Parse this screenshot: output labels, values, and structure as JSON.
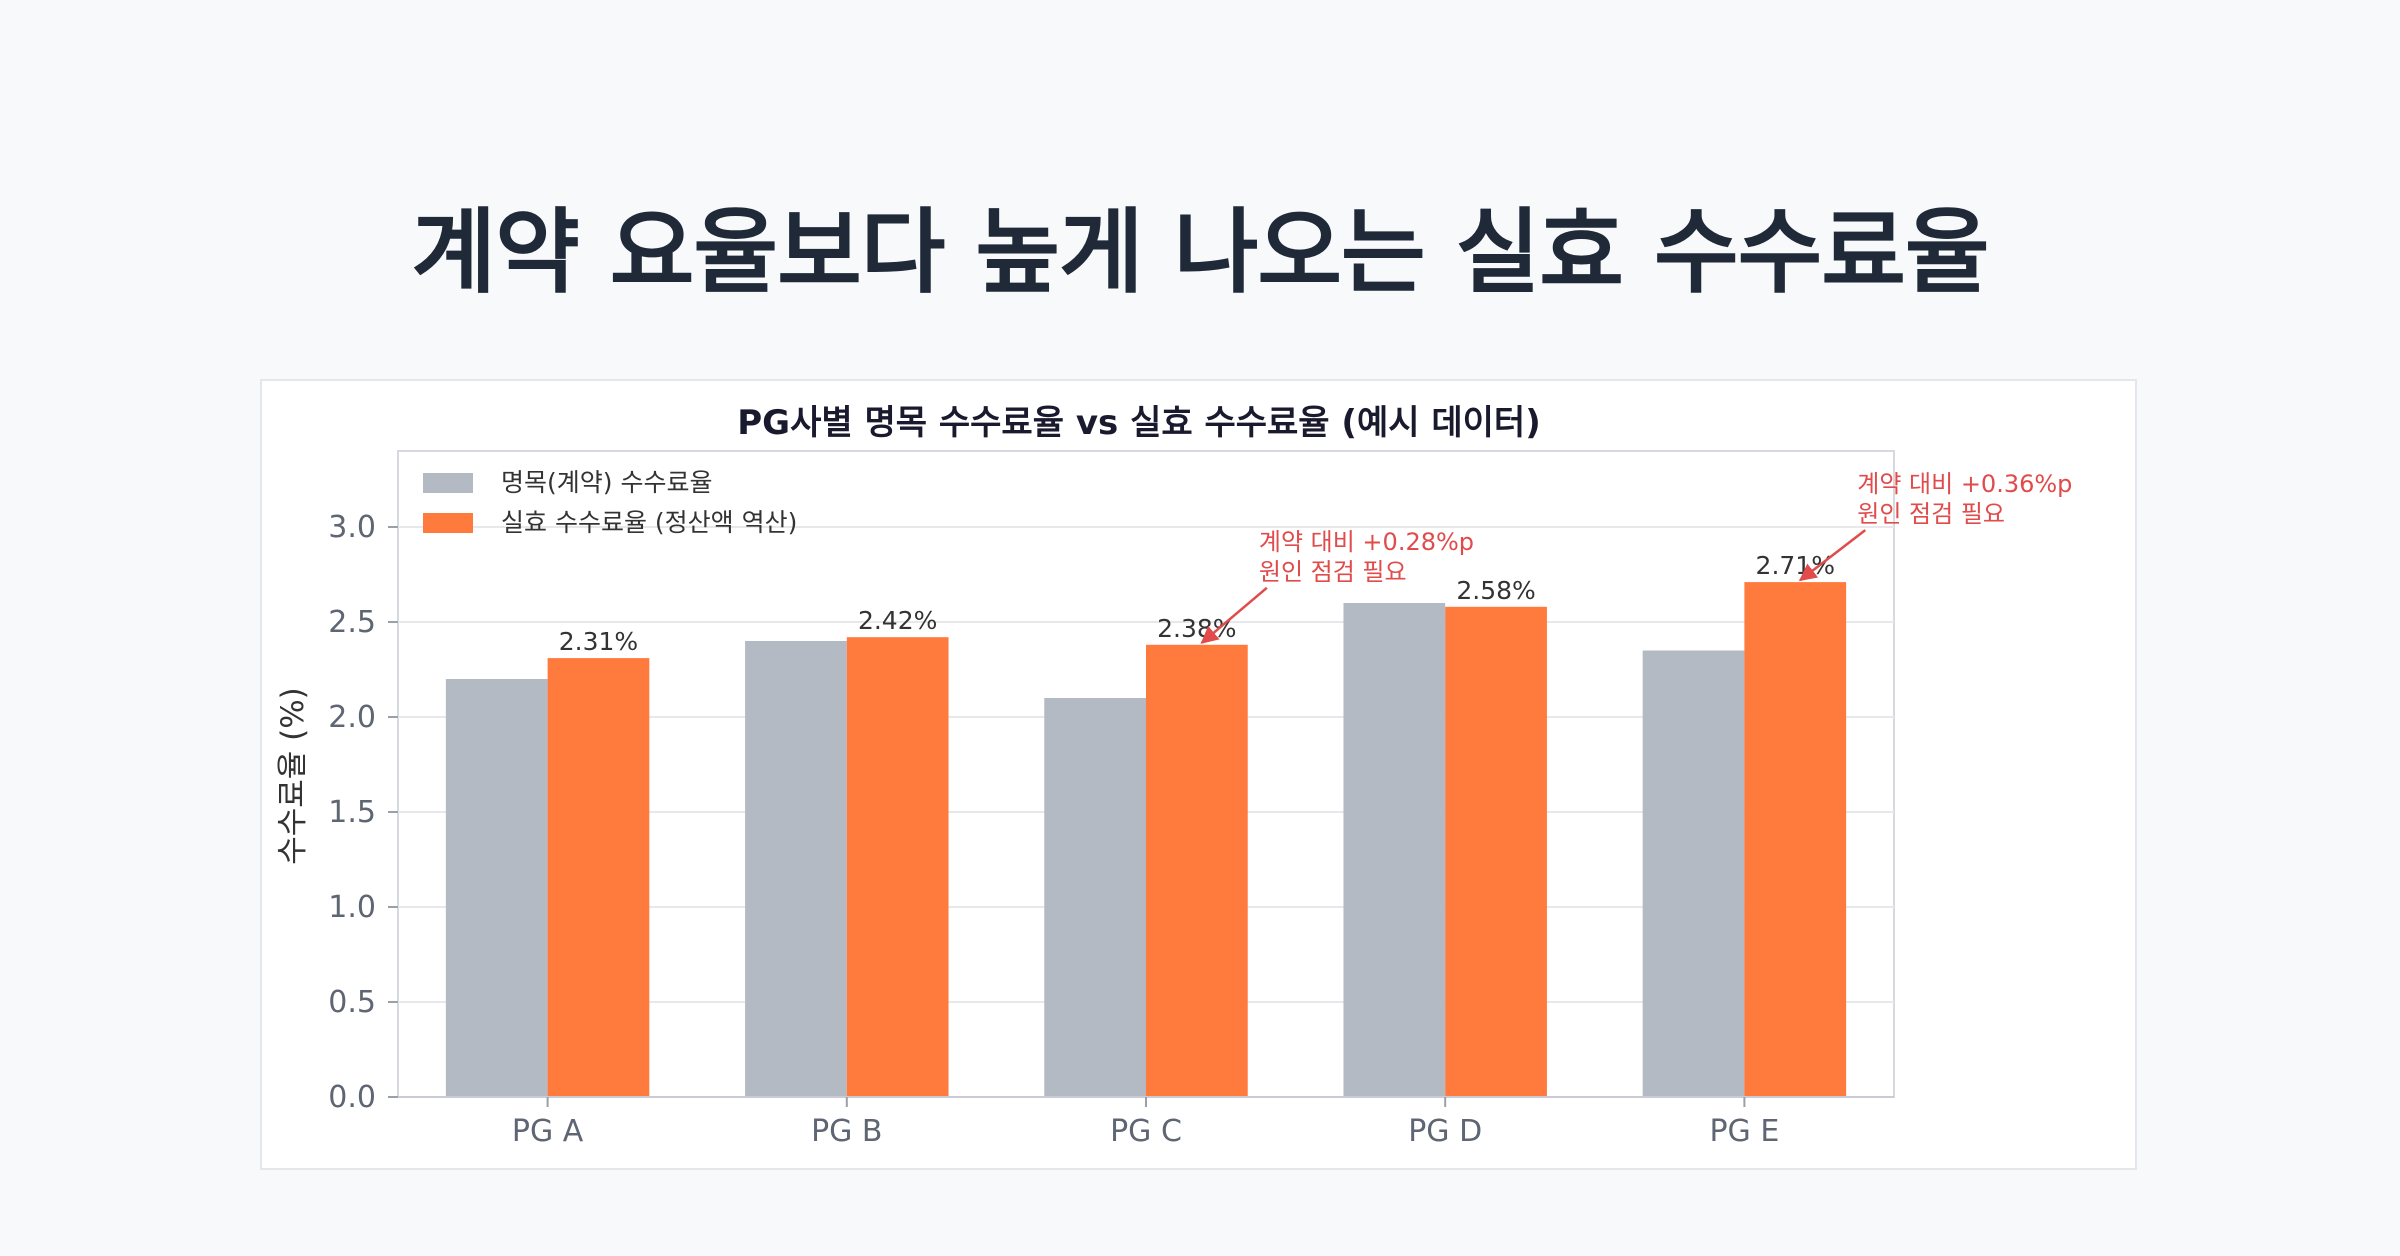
{
  "page": {
    "title": "계약 요율보다 높게 나오는 실효 수수료율"
  },
  "colors": {
    "nominal": "#b4bac3",
    "effective": "#ff7a3d",
    "annotation": "#e04b4b",
    "grid": "#e6e8eb"
  },
  "chart_data": {
    "type": "bar",
    "title": "PG사별 명목 수수료율 vs 실효 수수료율  (예시 데이터)",
    "xlabel": "",
    "ylabel": "수수료율 (%)",
    "ylim": [
      0,
      3.4
    ],
    "yticks": [
      0.0,
      0.5,
      1.0,
      1.5,
      2.0,
      2.5,
      3.0
    ],
    "ytick_labels": [
      "0.0",
      "0.5",
      "1.0",
      "1.5",
      "2.0",
      "2.5",
      "3.0"
    ],
    "categories": [
      "PG A",
      "PG B",
      "PG C",
      "PG D",
      "PG E"
    ],
    "grid": true,
    "legend_position": "top-left",
    "series": [
      {
        "name": "명목(계약) 수수료율",
        "values": [
          2.2,
          2.4,
          2.1,
          2.6,
          2.35
        ],
        "labels": [
          "",
          "",
          "",
          "",
          ""
        ]
      },
      {
        "name": "실효 수수료율 (정산액 역산)",
        "values": [
          2.31,
          2.42,
          2.38,
          2.58,
          2.71
        ],
        "labels": [
          "2.31%",
          "2.42%",
          "2.38%",
          "2.58%",
          "2.71%"
        ]
      }
    ],
    "annotations": [
      {
        "category_index": 2,
        "line1": "계약 대비 +0.28%p",
        "line2": "원인 점검 필요"
      },
      {
        "category_index": 4,
        "line1": "계약 대비 +0.36%p",
        "line2": "원인 점검 필요"
      }
    ]
  }
}
